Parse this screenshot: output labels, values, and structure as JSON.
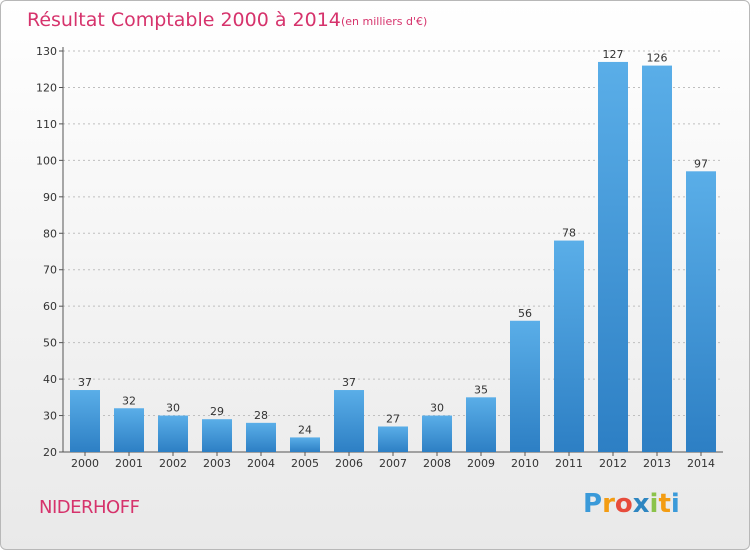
{
  "header": {
    "title": "Résultat Comptable 2000 à 2014",
    "subtitle": "(en milliers d'€)"
  },
  "footer": {
    "location": "NIDERHOFF",
    "logo": {
      "letters": [
        "P",
        "r",
        "o",
        "x",
        "i",
        "t",
        "i"
      ],
      "colors": [
        "#3a9ad9",
        "#f39c12",
        "#e74c3c",
        "#2e86c1",
        "#8bc34a",
        "#f39c12",
        "#3a9ad9"
      ]
    }
  },
  "colors": {
    "title": "#d6336c",
    "bar_top": "#5aaee8",
    "bar_bottom": "#2d7fc4",
    "axis": "#555555",
    "grid": "#bfbfbf"
  },
  "chart_data": {
    "type": "bar",
    "categories": [
      "2000",
      "2001",
      "2002",
      "2003",
      "2004",
      "2005",
      "2006",
      "2007",
      "2008",
      "2009",
      "2010",
      "2011",
      "2012",
      "2013",
      "2014"
    ],
    "values": [
      37,
      32,
      30,
      29,
      28,
      24,
      37,
      27,
      30,
      35,
      56,
      78,
      127,
      126,
      97
    ],
    "ylim": [
      20,
      130
    ],
    "yticks": [
      20,
      30,
      40,
      50,
      60,
      70,
      80,
      90,
      100,
      110,
      120,
      130
    ],
    "grid": true,
    "data_labels": true
  }
}
